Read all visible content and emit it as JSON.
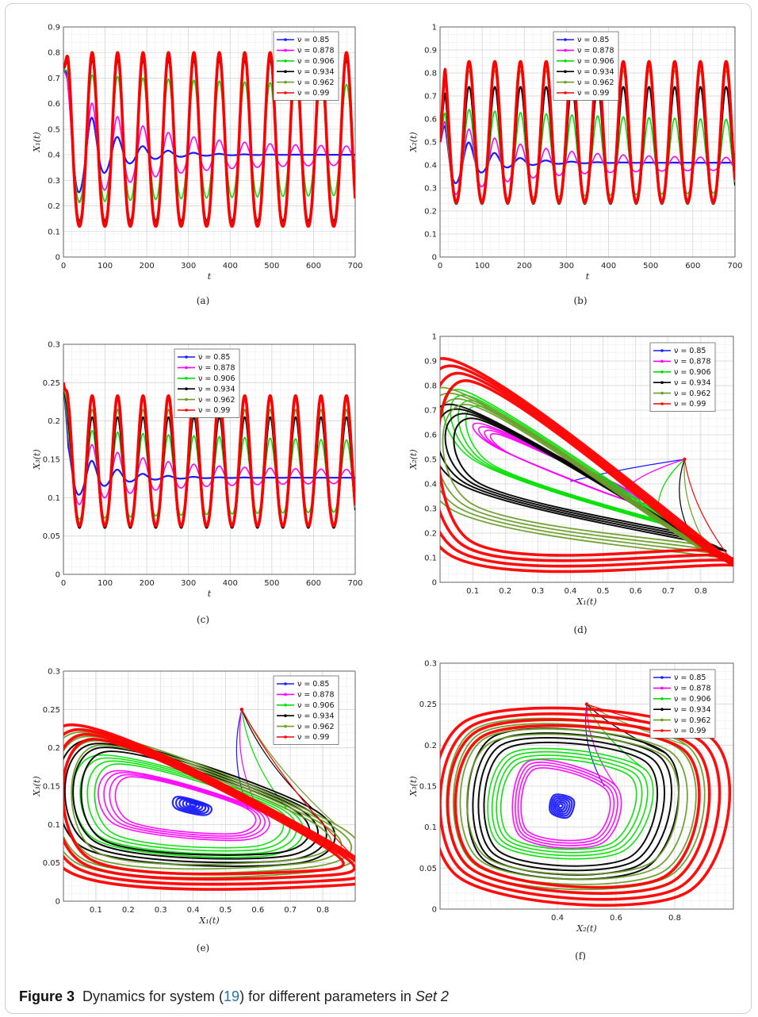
{
  "legend": {
    "entries": [
      "ν = 0.85",
      "ν = 0.878",
      "ν = 0.906",
      "ν = 0.934",
      "ν = 0.962",
      "ν = 0.99"
    ]
  },
  "series_colors": [
    "#1a1aff",
    "#ff00ff",
    "#00e000",
    "#000000",
    "#6b9e2a",
    "#ff0000"
  ],
  "caption": {
    "label": "Figure 3",
    "text_before": "Dynamics for system (",
    "ref": "19",
    "text_after": ") for different parameters in ",
    "set_name": "Set 2"
  },
  "chart_data": [
    {
      "id": "a",
      "type": "line",
      "sublabel": "(a)",
      "xlabel": "t",
      "ylabel": "X₁(t)",
      "xlim": [
        0,
        700
      ],
      "ylim": [
        0,
        0.9
      ],
      "xticks": [
        0,
        100,
        200,
        300,
        400,
        500,
        600,
        700
      ],
      "yticks": [
        0,
        0.1,
        0.2,
        0.3,
        0.4,
        0.5,
        0.6,
        0.7,
        0.8,
        0.9
      ],
      "ytick_labels": [
        "0",
        "0.1",
        "0.2",
        "0.3",
        "0.4",
        "0.5",
        "0.6",
        "0.7",
        "0.8",
        "0.9"
      ],
      "legend_position": "top-right",
      "initial": 0.75,
      "period": 61,
      "series": [
        {
          "nu": 0.85,
          "amp_start": 0.33,
          "decay": 0.012,
          "mean": 0.4,
          "limit_amp": 0.0
        },
        {
          "nu": 0.878,
          "amp_start": 0.3,
          "decay": 0.006,
          "mean": 0.39,
          "limit_amp": 0.04
        },
        {
          "nu": 0.906,
          "amp_start": 0.3,
          "decay": 0.002,
          "mean": 0.42,
          "limit_amp": 0.24
        },
        {
          "nu": 0.934,
          "amp_start": 0.37,
          "decay": 0.0,
          "mean": 0.4,
          "limit_amp": 0.37
        },
        {
          "nu": 0.962,
          "amp_start": 0.39,
          "decay": 0.0,
          "mean": 0.4,
          "limit_amp": 0.39
        },
        {
          "nu": 0.99,
          "amp_start": 0.4,
          "decay": 0.0,
          "mean": 0.4,
          "limit_amp": 0.4
        }
      ]
    },
    {
      "id": "b",
      "type": "line",
      "sublabel": "(b)",
      "xlabel": "t",
      "ylabel": "X₂(t)",
      "xlim": [
        0,
        700
      ],
      "ylim": [
        0,
        1
      ],
      "xticks": [
        0,
        100,
        200,
        300,
        400,
        500,
        600,
        700
      ],
      "yticks": [
        0,
        0.1,
        0.2,
        0.3,
        0.4,
        0.5,
        0.6,
        0.7,
        0.8,
        0.9,
        1
      ],
      "ytick_labels": [
        "0",
        "0.1",
        "0.2",
        "0.3",
        "0.4",
        "0.5",
        "0.6",
        "0.7",
        "0.8",
        "0.9",
        "1"
      ],
      "legend_position": "top-center",
      "initial": 0.5,
      "period": 61,
      "series": [
        {
          "nu": 0.85,
          "amp_start": 0.2,
          "decay": 0.012,
          "mean": 0.41,
          "limit_amp": 0.0
        },
        {
          "nu": 0.878,
          "amp_start": 0.22,
          "decay": 0.006,
          "mean": 0.4,
          "limit_amp": 0.03
        },
        {
          "nu": 0.906,
          "amp_start": 0.24,
          "decay": 0.002,
          "mean": 0.41,
          "limit_amp": 0.17
        },
        {
          "nu": 0.934,
          "amp_start": 0.3,
          "decay": 0.0,
          "mean": 0.44,
          "limit_amp": 0.28
        },
        {
          "nu": 0.962,
          "amp_start": 0.34,
          "decay": 0.0,
          "mean": 0.47,
          "limit_amp": 0.34
        },
        {
          "nu": 0.99,
          "amp_start": 0.36,
          "decay": 0.0,
          "mean": 0.49,
          "limit_amp": 0.36
        }
      ]
    },
    {
      "id": "c",
      "type": "line",
      "sublabel": "(c)",
      "xlabel": "t",
      "ylabel": "X₃(t)",
      "xlim": [
        0,
        700
      ],
      "ylim": [
        0,
        0.3
      ],
      "xticks": [
        0,
        100,
        200,
        300,
        400,
        500,
        600,
        700
      ],
      "yticks": [
        0,
        0.05,
        0.1,
        0.15,
        0.2,
        0.25,
        0.3
      ],
      "ytick_labels": [
        "0",
        "0.05",
        "0.1",
        "0.15",
        "0.2",
        "0.25",
        "0.3"
      ],
      "legend_position": "top-center",
      "initial": 0.25,
      "period": 61,
      "series": [
        {
          "nu": 0.85,
          "amp_start": 0.05,
          "decay": 0.012,
          "mean": 0.126,
          "limit_amp": 0.0
        },
        {
          "nu": 0.878,
          "amp_start": 0.06,
          "decay": 0.006,
          "mean": 0.126,
          "limit_amp": 0.01
        },
        {
          "nu": 0.906,
          "amp_start": 0.07,
          "decay": 0.002,
          "mean": 0.12,
          "limit_amp": 0.05
        },
        {
          "nu": 0.934,
          "amp_start": 0.085,
          "decay": 0.0,
          "mean": 0.12,
          "limit_amp": 0.085
        },
        {
          "nu": 0.962,
          "amp_start": 0.09,
          "decay": 0.0,
          "mean": 0.125,
          "limit_amp": 0.09
        },
        {
          "nu": 0.99,
          "amp_start": 0.1,
          "decay": 0.0,
          "mean": 0.133,
          "limit_amp": 0.1
        }
      ]
    },
    {
      "id": "d",
      "type": "phase",
      "sublabel": "(d)",
      "xlabel": "X₁(t)",
      "ylabel": "X₂(t)",
      "xlim": [
        0,
        0.9
      ],
      "ylim": [
        0,
        1
      ],
      "xticks": [
        0.1,
        0.2,
        0.3,
        0.4,
        0.5,
        0.6,
        0.7,
        0.8
      ],
      "xtick_labels": [
        "0.1",
        "0.2",
        "0.3",
        "0.4",
        "0.5",
        "0.6",
        "0.7",
        "0.8"
      ],
      "yticks": [
        0,
        0.1,
        0.2,
        0.3,
        0.4,
        0.5,
        0.6,
        0.7,
        0.8,
        0.9,
        1
      ],
      "ytick_labels": [
        "0",
        "0.1",
        "0.2",
        "0.3",
        "0.4",
        "0.5",
        "0.6",
        "0.7",
        "0.8",
        "0.9",
        "1"
      ],
      "legend_position": "top-right",
      "start_point": [
        0.75,
        0.5
      ],
      "equilibrium": [
        0.4,
        0.41
      ],
      "series": [
        {
          "nu": 0.85,
          "loop": [
            [
              0.4,
              0.41
            ],
            [
              0.4,
              0.41
            ],
            [
              0.4,
              0.41
            ],
            [
              0.4,
              0.41
            ]
          ]
        },
        {
          "nu": 0.878,
          "loop": [
            [
              0.14,
              0.64
            ],
            [
              0.57,
              0.38
            ],
            [
              0.58,
              0.33
            ],
            [
              0.17,
              0.55
            ]
          ]
        },
        {
          "nu": 0.906,
          "loop": [
            [
              0.07,
              0.78
            ],
            [
              0.67,
              0.28
            ],
            [
              0.7,
              0.23
            ],
            [
              0.1,
              0.5
            ]
          ]
        },
        {
          "nu": 0.934,
          "loop": [
            [
              0.05,
              0.72
            ],
            [
              0.77,
              0.19
            ],
            [
              0.8,
              0.16
            ],
            [
              0.06,
              0.4
            ]
          ]
        },
        {
          "nu": 0.962,
          "loop": [
            [
              0.02,
              0.79
            ],
            [
              0.83,
              0.12
            ],
            [
              0.86,
              0.1
            ],
            [
              0.03,
              0.3
            ]
          ]
        },
        {
          "nu": 0.99,
          "loop": [
            [
              0.01,
              0.91
            ],
            [
              0.9,
              0.08
            ],
            [
              0.89,
              0.07
            ],
            [
              0.02,
              0.12
            ]
          ]
        }
      ]
    },
    {
      "id": "e",
      "type": "phase",
      "sublabel": "(e)",
      "xlabel": "X₁(t)",
      "ylabel": "X₃(t)",
      "xlim": [
        0,
        0.9
      ],
      "ylim": [
        0,
        0.3
      ],
      "xticks": [
        0.1,
        0.2,
        0.3,
        0.4,
        0.5,
        0.6,
        0.7,
        0.8
      ],
      "xtick_labels": [
        "0.1",
        "0.2",
        "0.3",
        "0.4",
        "0.5",
        "0.6",
        "0.7",
        "0.8"
      ],
      "yticks": [
        0,
        0.05,
        0.1,
        0.15,
        0.2,
        0.25,
        0.3
      ],
      "ytick_labels": [
        "0",
        "0.05",
        "0.1",
        "0.15",
        "0.2",
        "0.25",
        "0.3"
      ],
      "legend_position": "top-right",
      "start_point": [
        0.55,
        0.25
      ],
      "equilibrium": [
        0.4,
        0.126
      ],
      "series": [
        {
          "nu": 0.85,
          "loop": [
            [
              0.24,
              0.16
            ],
            [
              0.57,
              0.12
            ],
            [
              0.52,
              0.08
            ],
            [
              0.22,
              0.11
            ]
          ]
        },
        {
          "nu": 0.878,
          "loop": [
            [
              0.16,
              0.17
            ],
            [
              0.6,
              0.12
            ],
            [
              0.56,
              0.08
            ],
            [
              0.16,
              0.1
            ]
          ]
        },
        {
          "nu": 0.906,
          "loop": [
            [
              0.1,
              0.19
            ],
            [
              0.69,
              0.12
            ],
            [
              0.64,
              0.06
            ],
            [
              0.1,
              0.08
            ]
          ]
        },
        {
          "nu": 0.934,
          "loop": [
            [
              0.07,
              0.21
            ],
            [
              0.77,
              0.12
            ],
            [
              0.73,
              0.05
            ],
            [
              0.06,
              0.07
            ]
          ]
        },
        {
          "nu": 0.962,
          "loop": [
            [
              0.04,
              0.22
            ],
            [
              0.84,
              0.1
            ],
            [
              0.8,
              0.04
            ],
            [
              0.04,
              0.05
            ]
          ]
        },
        {
          "nu": 0.99,
          "loop": [
            [
              0.02,
              0.23
            ],
            [
              0.89,
              0.06
            ],
            [
              0.82,
              0.02
            ],
            [
              0.01,
              0.04
            ]
          ]
        }
      ]
    },
    {
      "id": "f",
      "type": "phase",
      "sublabel": "(f)",
      "xlabel": "X₂(t)",
      "ylabel": "X₃(t)",
      "xlim": [
        0,
        1
      ],
      "ylim": [
        0,
        0.3
      ],
      "xticks": [
        0.4,
        0.6,
        0.8
      ],
      "xtick_labels": [
        "0.4",
        "0.6",
        "0.8"
      ],
      "yticks": [
        0,
        0.05,
        0.1,
        0.15,
        0.2,
        0.25,
        0.3
      ],
      "ytick_labels": [
        "0",
        "0.05",
        "0.1",
        "0.15",
        "0.2",
        "0.25",
        "0.3"
      ],
      "legend_position": "top-right",
      "start_point": [
        0.5,
        0.25
      ],
      "equilibrium": [
        0.41,
        0.126
      ],
      "series": [
        {
          "nu": 0.85,
          "loop": [
            [
              0.34,
              0.17
            ],
            [
              0.56,
              0.15
            ],
            [
              0.5,
              0.08
            ],
            [
              0.3,
              0.1
            ]
          ]
        },
        {
          "nu": 0.878,
          "loop": [
            [
              0.3,
              0.18
            ],
            [
              0.6,
              0.15
            ],
            [
              0.55,
              0.08
            ],
            [
              0.27,
              0.09
            ]
          ]
        },
        {
          "nu": 0.906,
          "loop": [
            [
              0.24,
              0.19
            ],
            [
              0.7,
              0.17
            ],
            [
              0.62,
              0.07
            ],
            [
              0.2,
              0.08
            ]
          ]
        },
        {
          "nu": 0.934,
          "loop": [
            [
              0.18,
              0.21
            ],
            [
              0.77,
              0.19
            ],
            [
              0.7,
              0.05
            ],
            [
              0.15,
              0.06
            ]
          ]
        },
        {
          "nu": 0.962,
          "loop": [
            [
              0.12,
              0.22
            ],
            [
              0.84,
              0.2
            ],
            [
              0.78,
              0.04
            ],
            [
              0.1,
              0.05
            ]
          ]
        },
        {
          "nu": 0.99,
          "loop": [
            [
              0.09,
              0.23
            ],
            [
              0.92,
              0.21
            ],
            [
              0.84,
              0.02
            ],
            [
              0.06,
              0.04
            ]
          ]
        }
      ]
    }
  ]
}
